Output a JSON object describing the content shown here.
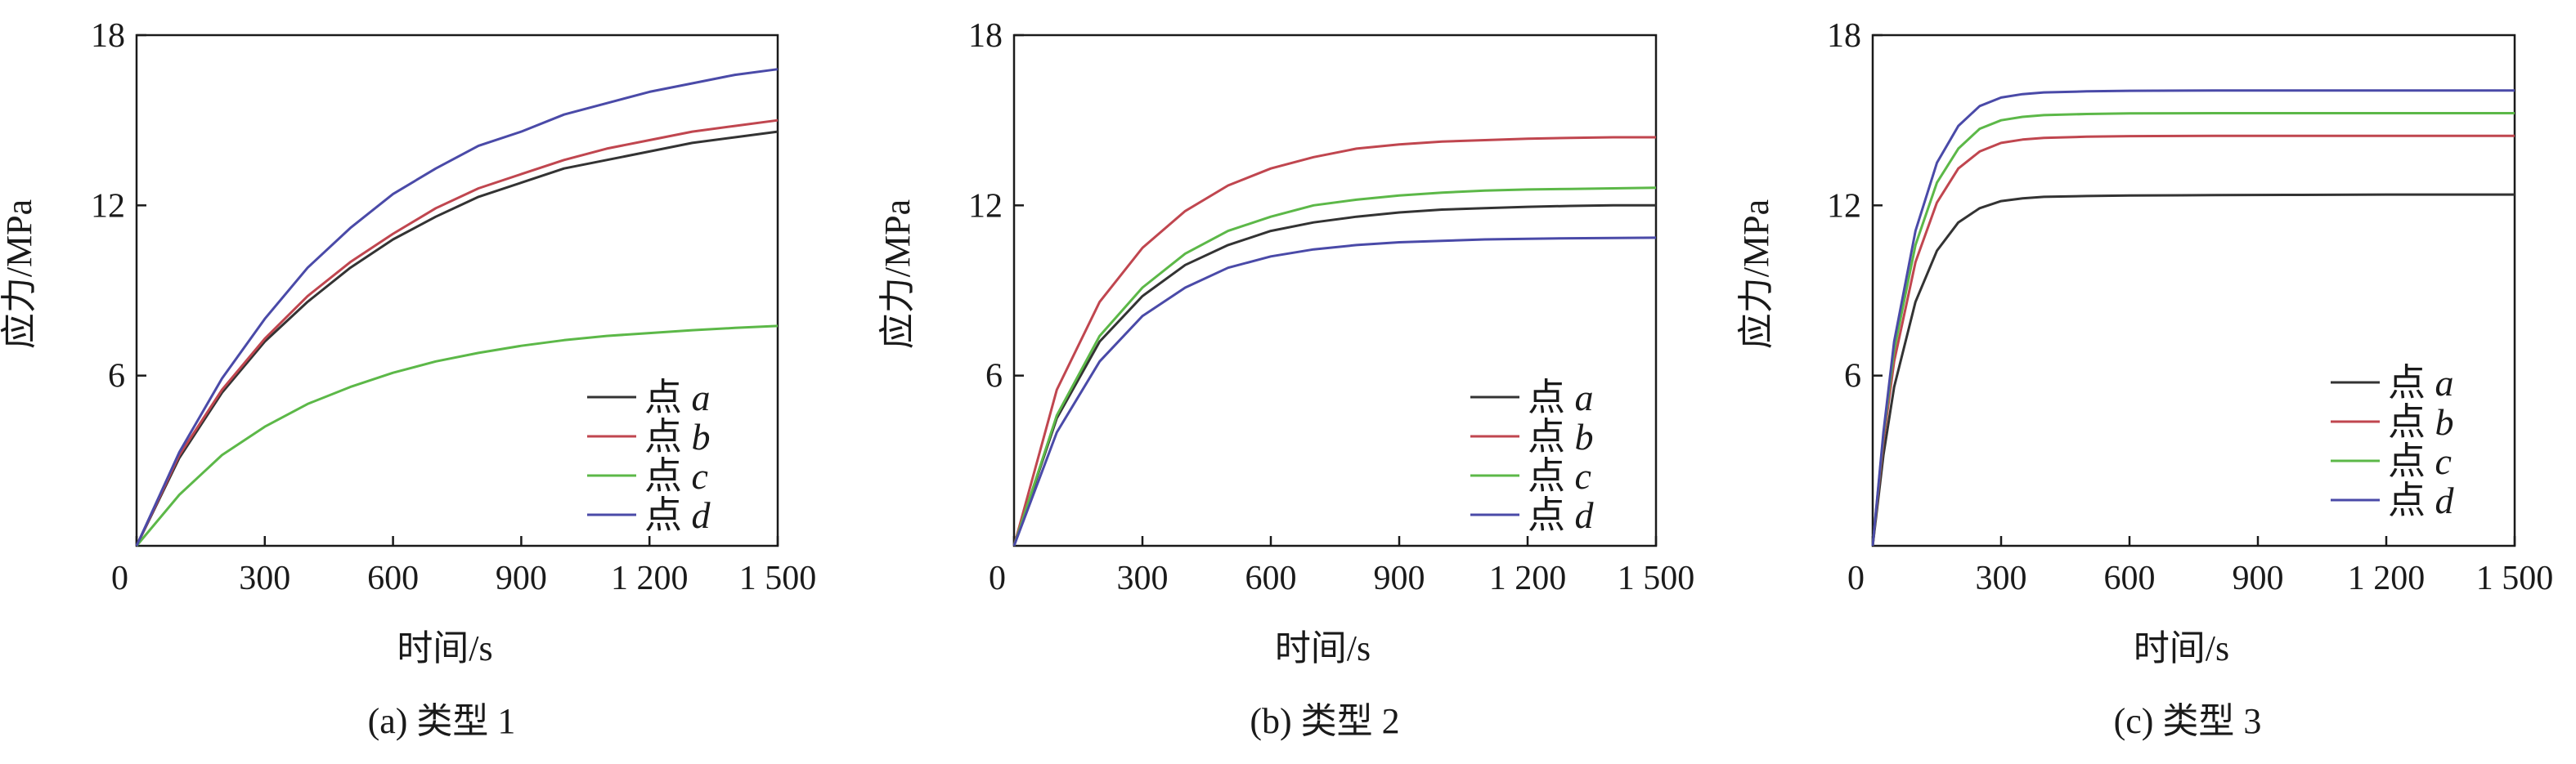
{
  "figure": {
    "background": "#ffffff",
    "axis_color": "#1a1a1a"
  },
  "chart_data": [
    {
      "type": "line",
      "caption": "(a) 类型 1",
      "xlabel": "时间/s",
      "ylabel": "应力/MPa",
      "xlim": [
        0,
        1500
      ],
      "ylim": [
        0,
        18
      ],
      "xticks": [
        0,
        300,
        600,
        900,
        1200,
        1500
      ],
      "xtick_labels": [
        "0",
        "300",
        "600",
        "900",
        "1 200",
        "1 500"
      ],
      "yticks": [
        6,
        12,
        18
      ],
      "ytick_labels": [
        "6",
        "12",
        "18"
      ],
      "legend_position": "bottom-right",
      "series": [
        {
          "name_prefix": "点",
          "name_letter": "a",
          "color": "#333333",
          "x": [
            0,
            100,
            200,
            300,
            400,
            500,
            600,
            700,
            800,
            900,
            1000,
            1100,
            1200,
            1300,
            1400,
            1500
          ],
          "y": [
            0,
            3.1,
            5.4,
            7.2,
            8.6,
            9.8,
            10.8,
            11.6,
            12.3,
            12.8,
            13.3,
            13.6,
            13.9,
            14.2,
            14.4,
            14.6
          ]
        },
        {
          "name_prefix": "点",
          "name_letter": "b",
          "color": "#c0464f",
          "x": [
            0,
            100,
            200,
            300,
            400,
            500,
            600,
            700,
            800,
            900,
            1000,
            1100,
            1200,
            1300,
            1400,
            1500
          ],
          "y": [
            0,
            3.2,
            5.5,
            7.3,
            8.8,
            10.0,
            11.0,
            11.9,
            12.6,
            13.1,
            13.6,
            14.0,
            14.3,
            14.6,
            14.8,
            15.0
          ]
        },
        {
          "name_prefix": "点",
          "name_letter": "c",
          "color": "#5cb848",
          "x": [
            0,
            100,
            200,
            300,
            400,
            500,
            600,
            700,
            800,
            900,
            1000,
            1100,
            1200,
            1300,
            1400,
            1500
          ],
          "y": [
            0,
            1.8,
            3.2,
            4.2,
            5.0,
            5.6,
            6.1,
            6.5,
            6.8,
            7.05,
            7.25,
            7.4,
            7.5,
            7.6,
            7.68,
            7.75
          ]
        },
        {
          "name_prefix": "点",
          "name_letter": "d",
          "color": "#4a4aa8",
          "x": [
            0,
            100,
            200,
            300,
            400,
            500,
            600,
            700,
            800,
            900,
            1000,
            1100,
            1200,
            1300,
            1400,
            1500
          ],
          "y": [
            0,
            3.3,
            5.9,
            8.0,
            9.8,
            11.2,
            12.4,
            13.3,
            14.1,
            14.6,
            15.2,
            15.6,
            16.0,
            16.3,
            16.6,
            16.8
          ]
        }
      ]
    },
    {
      "type": "line",
      "caption": "(b) 类型 2",
      "xlabel": "时间/s",
      "ylabel": "应力/MPa",
      "xlim": [
        0,
        1500
      ],
      "ylim": [
        0,
        18
      ],
      "xticks": [
        0,
        300,
        600,
        900,
        1200,
        1500
      ],
      "xtick_labels": [
        "0",
        "300",
        "600",
        "900",
        "1 200",
        "1 500"
      ],
      "yticks": [
        6,
        12,
        18
      ],
      "ytick_labels": [
        "6",
        "12",
        "18"
      ],
      "legend_position": "bottom-right",
      "series": [
        {
          "name_prefix": "点",
          "name_letter": "a",
          "color": "#333333",
          "x": [
            0,
            100,
            200,
            300,
            400,
            500,
            600,
            700,
            800,
            900,
            1000,
            1100,
            1200,
            1300,
            1400,
            1500
          ],
          "y": [
            0,
            4.5,
            7.2,
            8.8,
            9.9,
            10.6,
            11.1,
            11.4,
            11.6,
            11.75,
            11.85,
            11.9,
            11.95,
            11.98,
            12.0,
            12.0
          ]
        },
        {
          "name_prefix": "点",
          "name_letter": "b",
          "color": "#c0464f",
          "x": [
            0,
            100,
            200,
            300,
            400,
            500,
            600,
            700,
            800,
            900,
            1000,
            1100,
            1200,
            1300,
            1400,
            1500
          ],
          "y": [
            0,
            5.5,
            8.6,
            10.5,
            11.8,
            12.7,
            13.3,
            13.7,
            14.0,
            14.15,
            14.25,
            14.3,
            14.35,
            14.38,
            14.4,
            14.4
          ]
        },
        {
          "name_prefix": "点",
          "name_letter": "c",
          "color": "#5cb848",
          "x": [
            0,
            100,
            200,
            300,
            400,
            500,
            600,
            700,
            800,
            900,
            1000,
            1100,
            1200,
            1300,
            1400,
            1500
          ],
          "y": [
            0,
            4.6,
            7.4,
            9.1,
            10.3,
            11.1,
            11.6,
            12.0,
            12.2,
            12.35,
            12.45,
            12.52,
            12.56,
            12.58,
            12.6,
            12.62
          ]
        },
        {
          "name_prefix": "点",
          "name_letter": "d",
          "color": "#4a4aa8",
          "x": [
            0,
            100,
            200,
            300,
            400,
            500,
            600,
            700,
            800,
            900,
            1000,
            1100,
            1200,
            1300,
            1400,
            1500
          ],
          "y": [
            0,
            4.0,
            6.5,
            8.1,
            9.1,
            9.8,
            10.2,
            10.45,
            10.6,
            10.7,
            10.75,
            10.8,
            10.82,
            10.84,
            10.85,
            10.86
          ]
        }
      ]
    },
    {
      "type": "line",
      "caption": "(c) 类型 3",
      "xlabel": "时间/s",
      "ylabel": "应力/MPa",
      "xlim": [
        0,
        1500
      ],
      "ylim": [
        0,
        18
      ],
      "xticks": [
        0,
        300,
        600,
        900,
        1200,
        1500
      ],
      "xtick_labels": [
        "0",
        "300",
        "600",
        "900",
        "1 200",
        "1 500"
      ],
      "yticks": [
        6,
        12,
        18
      ],
      "ytick_labels": [
        "6",
        "12",
        "18"
      ],
      "legend_position": "bottom-right",
      "series": [
        {
          "name_prefix": "点",
          "name_letter": "a",
          "color": "#333333",
          "x": [
            0,
            25,
            50,
            100,
            150,
            200,
            250,
            300,
            350,
            400,
            500,
            600,
            800,
            1000,
            1200,
            1500
          ],
          "y": [
            0,
            3.2,
            5.6,
            8.6,
            10.4,
            11.4,
            11.9,
            12.15,
            12.25,
            12.3,
            12.33,
            12.35,
            12.36,
            12.37,
            12.38,
            12.38
          ]
        },
        {
          "name_prefix": "点",
          "name_letter": "b",
          "color": "#c0464f",
          "x": [
            0,
            25,
            50,
            100,
            150,
            200,
            250,
            300,
            350,
            400,
            500,
            600,
            800,
            1000,
            1200,
            1500
          ],
          "y": [
            0,
            3.7,
            6.5,
            10.0,
            12.1,
            13.3,
            13.9,
            14.2,
            14.32,
            14.38,
            14.42,
            14.44,
            14.45,
            14.45,
            14.45,
            14.45
          ]
        },
        {
          "name_prefix": "点",
          "name_letter": "c",
          "color": "#5cb848",
          "x": [
            0,
            25,
            50,
            100,
            150,
            200,
            250,
            300,
            350,
            400,
            500,
            600,
            800,
            1000,
            1200,
            1500
          ],
          "y": [
            0,
            3.9,
            6.9,
            10.6,
            12.8,
            14.0,
            14.7,
            15.0,
            15.12,
            15.18,
            15.22,
            15.24,
            15.25,
            15.25,
            15.25,
            15.25
          ]
        },
        {
          "name_prefix": "点",
          "name_letter": "d",
          "color": "#4a4aa8",
          "x": [
            0,
            25,
            50,
            100,
            150,
            200,
            250,
            300,
            350,
            400,
            500,
            600,
            800,
            1000,
            1200,
            1500
          ],
          "y": [
            0,
            4.0,
            7.2,
            11.1,
            13.5,
            14.8,
            15.5,
            15.8,
            15.92,
            15.98,
            16.02,
            16.04,
            16.05,
            16.05,
            16.05,
            16.05
          ]
        }
      ]
    }
  ]
}
